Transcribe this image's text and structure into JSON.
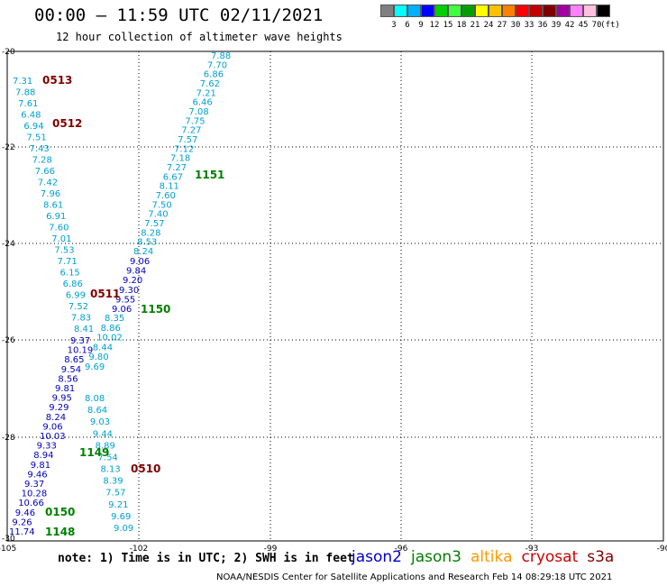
{
  "title": "00:00 – 11:59 UTC 02/11/2021",
  "subtitle": "12 hour collection of altimeter wave heights",
  "colorbar": {
    "colors": [
      "#808080",
      "#00ffff",
      "#00b0ff",
      "#0000ff",
      "#00d000",
      "#40ff40",
      "#00a000",
      "#ffff00",
      "#ffc000",
      "#ff8000",
      "#ff0000",
      "#c00000",
      "#800000",
      "#a000a0",
      "#ff80ff",
      "#ffc0e0",
      "#000000"
    ],
    "labels": [
      "3",
      "6",
      "9",
      "12",
      "15",
      "18",
      "21",
      "24",
      "27",
      "30",
      "33",
      "36",
      "39",
      "42",
      "45",
      "70",
      "(ft)"
    ]
  },
  "axes": {
    "lat_ticks": [
      "-20",
      "-22",
      "-24",
      "-26",
      "-28",
      "-30"
    ],
    "lon_ticks": [
      "-105",
      "-102",
      "-99",
      "-96",
      "-93",
      "-90"
    ]
  },
  "note": "note: 1) Time is in UTC; 2) SWH is in feet",
  "legend": [
    {
      "name": "jason2",
      "color": "#0000d0"
    },
    {
      "name": "jason3",
      "color": "#008000"
    },
    {
      "name": "altika",
      "color": "#ff9900"
    },
    {
      "name": "cryosat",
      "color": "#cc0000"
    },
    {
      "name": "s3a",
      "color": "#800000"
    }
  ],
  "footer": "NOAA/NESDIS Center for Satellite Applications and Research    Feb 14 08:29:18 UTC 2021",
  "track_a": {
    "color": "#00a0d0",
    "values": [
      "7.31",
      "7.88",
      "7.61",
      "6.48",
      "6.94",
      "7.51",
      "7.43",
      "7.28",
      "7.66",
      "7.42",
      "7.96",
      "8.61",
      "6.91",
      "7.60",
      "7.01",
      "7.53",
      "7.71",
      "6.15",
      "6.86",
      "6.99",
      "7.52",
      "7.83",
      "8.41"
    ]
  },
  "track_b": {
    "color": "#00a0d0",
    "values": [
      "7.88",
      "7.70",
      "6.86",
      "7.62",
      "7.21",
      "6.46",
      "7.08",
      "7.75",
      "7.27",
      "7.57",
      "7.12",
      "7.18",
      "7.27",
      "6.67",
      "8.11",
      "7.60",
      "7.50",
      "7.40",
      "7.57",
      "8.28",
      "8.53",
      "8.24"
    ]
  },
  "track_c": {
    "color": "#0000c0",
    "values": [
      "9.06",
      "9.84",
      "9.20",
      "9.30",
      "9.55",
      "9.06"
    ]
  },
  "track_d": {
    "color": "#00a0d0",
    "values": [
      "8.35",
      "8.86",
      "10.02",
      "8.44",
      "9.80",
      "9.69"
    ]
  },
  "track_e": {
    "color": "#0000c0",
    "values": [
      "9.37",
      "10.19",
      "8.65",
      "9.54",
      "8.56",
      "9.81",
      "9.95",
      "9.29",
      "8.24",
      "9.06",
      "10.03",
      "9.33",
      "8.94",
      "9.81",
      "9.46",
      "9.37",
      "10.28",
      "10.66",
      "9.46",
      "9.26",
      "11.74"
    ]
  },
  "track_f": {
    "color": "#00a0d0",
    "values": [
      "8.08",
      "8.64",
      "9.03",
      "9.44",
      "8.89",
      "7.54",
      "8.13",
      "8.39",
      "7.57",
      "9.21",
      "9.69",
      "9.09"
    ]
  },
  "time_labels": [
    {
      "text": "0513",
      "color": "#800000"
    },
    {
      "text": "0512",
      "color": "#800000"
    },
    {
      "text": "1151",
      "color": "#008000"
    },
    {
      "text": "0511",
      "color": "#800000"
    },
    {
      "text": "1150",
      "color": "#008000"
    },
    {
      "text": "1149",
      "color": "#008000"
    },
    {
      "text": "0510",
      "color": "#800000"
    },
    {
      "text": "0150",
      "color": "#008000"
    },
    {
      "text": "1148",
      "color": "#008000"
    }
  ]
}
